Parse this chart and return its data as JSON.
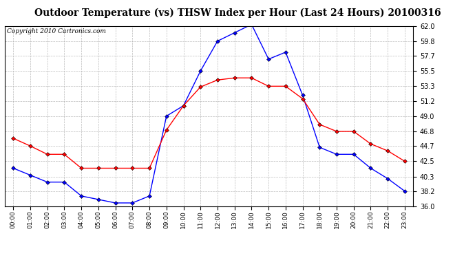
{
  "title": "Outdoor Temperature (vs) THSW Index per Hour (Last 24 Hours) 20100316",
  "copyright": "Copyright 2010 Cartronics.com",
  "hours": [
    "00:00",
    "01:00",
    "02:00",
    "03:00",
    "04:00",
    "05:00",
    "06:00",
    "07:00",
    "08:00",
    "09:00",
    "10:00",
    "11:00",
    "12:00",
    "13:00",
    "14:00",
    "15:00",
    "16:00",
    "17:00",
    "18:00",
    "19:00",
    "20:00",
    "21:00",
    "22:00",
    "23:00"
  ],
  "blue_data": [
    41.5,
    40.5,
    39.5,
    39.5,
    37.5,
    37.0,
    36.5,
    36.5,
    37.5,
    49.0,
    50.5,
    55.5,
    59.8,
    61.0,
    62.2,
    57.2,
    58.2,
    52.0,
    44.5,
    43.5,
    43.5,
    41.5,
    40.0,
    38.2
  ],
  "red_data": [
    45.8,
    44.7,
    43.5,
    43.5,
    41.5,
    41.5,
    41.5,
    41.5,
    41.5,
    47.0,
    50.5,
    53.2,
    54.2,
    54.5,
    54.5,
    53.3,
    53.3,
    51.5,
    47.8,
    46.8,
    46.8,
    45.0,
    44.0,
    42.5
  ],
  "ylim": [
    36.0,
    62.0
  ],
  "yticks": [
    36.0,
    38.2,
    40.3,
    42.5,
    44.7,
    46.8,
    49.0,
    51.2,
    53.3,
    55.5,
    57.7,
    59.8,
    62.0
  ],
  "blue_color": "#0000FF",
  "red_color": "#FF0000",
  "bg_color": "#FFFFFF",
  "plot_bg_color": "#FFFFFF",
  "grid_color": "#AAAAAA",
  "title_fontsize": 10,
  "copyright_fontsize": 6.5
}
